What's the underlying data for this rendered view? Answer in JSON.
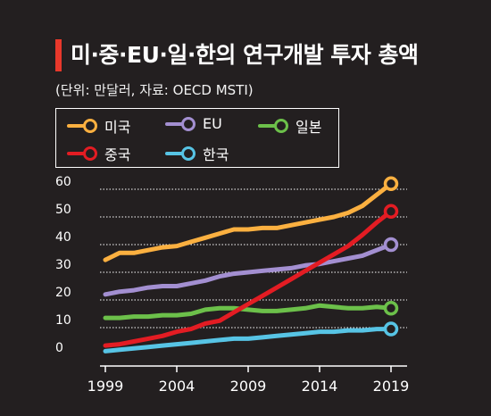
{
  "title": "미·중·EU·일·한의 연구개발 투자 총액",
  "subtitle": "(단위: 만달러, 자료: OECD MSTI)",
  "chart_data": {
    "type": "line",
    "title": "미·중·EU·일·한의 연구개발 투자 총액",
    "subtitle": "(단위: 만달러, 자료: OECD MSTI)",
    "ylim": [
      0,
      60
    ],
    "xlim": [
      1999,
      2019
    ],
    "yticks": [
      "0",
      "10",
      "20",
      "30",
      "40",
      "50",
      "60"
    ],
    "xticks": [
      "1999",
      "2004",
      "2009",
      "2014",
      "2019"
    ],
    "grid": "horizontal dotted",
    "legend_position": "top-left",
    "x": [
      1999,
      2000,
      2001,
      2002,
      2003,
      2004,
      2005,
      2006,
      2007,
      2008,
      2009,
      2010,
      2011,
      2012,
      2013,
      2014,
      2015,
      2016,
      2017,
      2018,
      2019
    ],
    "series": [
      {
        "name": "미국",
        "color": "#fbb040",
        "values": [
          34.5,
          37,
          37,
          38,
          39,
          39.5,
          41,
          42.5,
          44,
          45.5,
          45.5,
          46,
          46,
          47,
          48,
          49,
          50,
          51.5,
          54,
          58,
          62
        ]
      },
      {
        "name": "EU",
        "color": "#a38fd1",
        "values": [
          22,
          23,
          23.5,
          24.5,
          25,
          25,
          26,
          27,
          28.5,
          29.5,
          30,
          30.5,
          31,
          31.5,
          32.5,
          33,
          34,
          35,
          36,
          38,
          40
        ]
      },
      {
        "name": "일본",
        "color": "#6cc04a",
        "values": [
          13.5,
          13.5,
          14,
          14,
          14.5,
          14.5,
          15,
          16.5,
          17,
          17,
          16.5,
          16,
          16,
          16.5,
          17,
          18,
          17.5,
          17,
          17,
          17.5,
          17
        ]
      },
      {
        "name": "중국",
        "color": "#e31c23",
        "values": [
          3.5,
          4,
          5,
          6,
          7,
          8.5,
          9.5,
          11.5,
          12.5,
          15.5,
          18.5,
          21.5,
          24.5,
          27.5,
          30.5,
          33.5,
          36.5,
          39.5,
          43.5,
          48,
          52
        ]
      },
      {
        "name": "한국",
        "color": "#57c4e5",
        "values": [
          1.5,
          2,
          2.5,
          3,
          3.5,
          4,
          4.5,
          5,
          5.5,
          6,
          6,
          6.5,
          7,
          7.5,
          8,
          8.5,
          8.5,
          9,
          9,
          9.5,
          9.5
        ]
      }
    ]
  }
}
